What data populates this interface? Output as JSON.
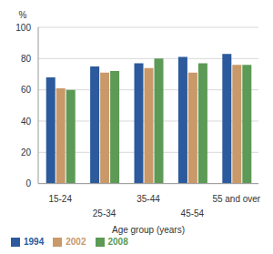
{
  "chart_data": {
    "type": "bar",
    "y_label": "%",
    "x_label": "Age group (years)",
    "categories": [
      "15-24",
      "25-34",
      "35-44",
      "45-54",
      "55 and over"
    ],
    "series": [
      {
        "name": "1994",
        "color": "#2c5a9c",
        "values": [
          68,
          75,
          77,
          81,
          83
        ]
      },
      {
        "name": "2002",
        "color": "#c9996a",
        "values": [
          61,
          71,
          74,
          71,
          76
        ]
      },
      {
        "name": "2008",
        "color": "#5c9a56",
        "values": [
          60,
          72,
          80,
          77,
          76
        ]
      }
    ],
    "ylim": [
      0,
      100
    ],
    "yticks": [
      0,
      20,
      40,
      60,
      80,
      100
    ],
    "grid": true,
    "legend": "bottom-left"
  }
}
